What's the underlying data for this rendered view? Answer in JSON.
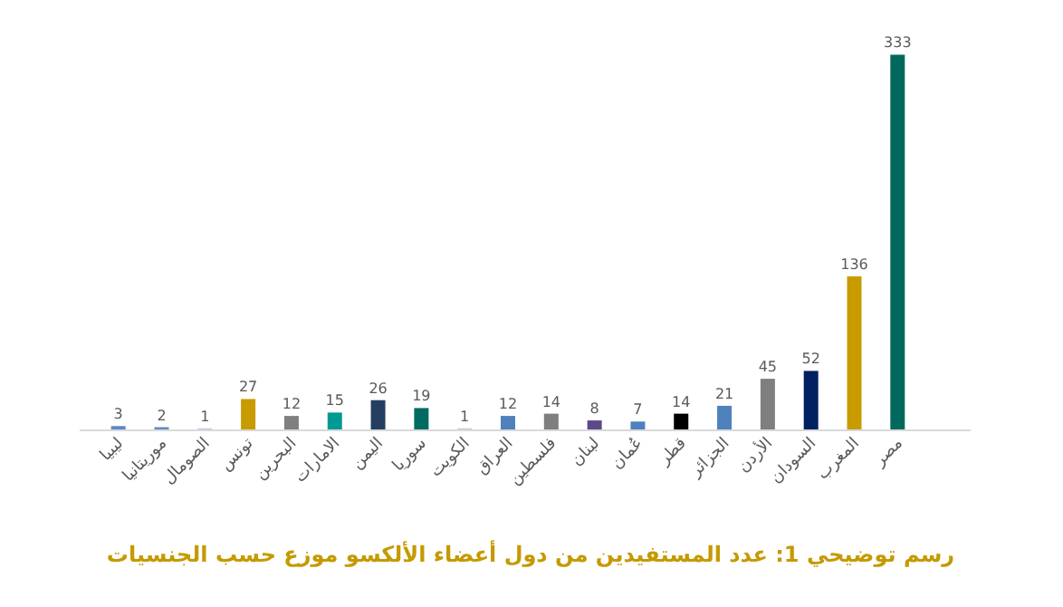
{
  "chart_data": {
    "type": "bar",
    "title": "رسم توضيحي 1: عدد المستفيدين من دول أعضاء الألكسو موزع حسب الجنسيات",
    "categories": [
      "ليبيا",
      "موريتانيا",
      "الصومال",
      "تونس",
      "البحرين",
      "الامارات",
      "اليمن",
      "سوريا",
      "الكويت",
      "العراق",
      "فلسطين",
      "لبنان",
      "عُمان",
      "قطر",
      "الجزائر",
      "الأردن",
      "السودان",
      "المغرب",
      "مصر"
    ],
    "values": [
      3,
      2,
      1,
      27,
      12,
      15,
      26,
      19,
      1,
      12,
      14,
      8,
      7,
      14,
      21,
      45,
      52,
      136,
      333
    ],
    "colors": [
      "#5b8ac6",
      "#5b8ac6",
      "#b9cde5",
      "#c89b00",
      "#7f7f7f",
      "#009a93",
      "#243f60",
      "#006b60",
      "#b9cde5",
      "#4f81bd",
      "#7f7f7f",
      "#5c4a87",
      "#4f81bd",
      "#000000",
      "#4f81bd",
      "#7f7f7f",
      "#002060",
      "#c89b00",
      "#00695c"
    ],
    "data_labels": true
  }
}
